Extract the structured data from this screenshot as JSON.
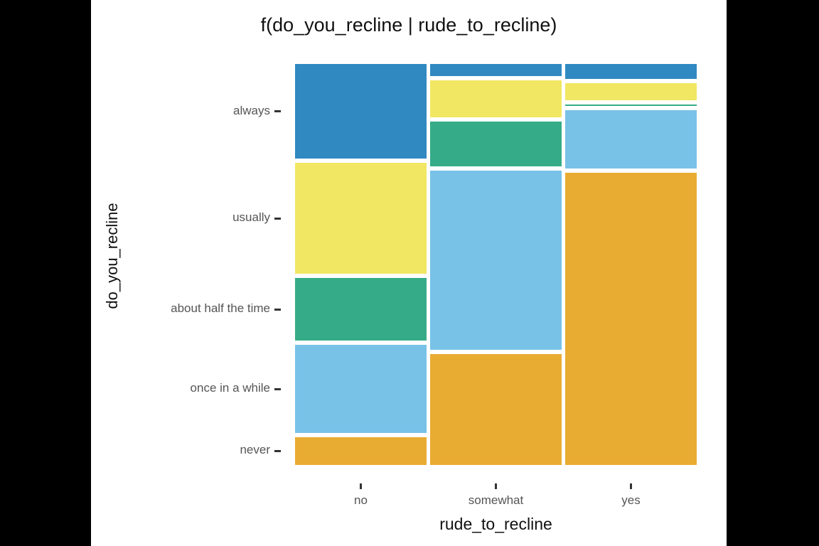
{
  "title": "f(do_you_recline | rude_to_recline)",
  "chart_data": {
    "type": "mosaic",
    "title": "f(do_you_recline | rude_to_recline)",
    "xlabel": "rude_to_recline",
    "ylabel": "do_you_recline",
    "x_categories": [
      "no",
      "somewhat",
      "yes"
    ],
    "y_categories_top_to_bottom": [
      "always",
      "usually",
      "about half the time",
      "once in a while",
      "never"
    ],
    "colors": {
      "always": "#3089c1",
      "usually": "#f1e763",
      "about half the time": "#35ac87",
      "once in a while": "#78c2e8",
      "never": "#e9ac33"
    },
    "series": [
      {
        "x": "no",
        "proportions": {
          "always": 0.247,
          "usually": 0.289,
          "about half the time": 0.163,
          "once in a while": 0.228,
          "never": 0.073
        }
      },
      {
        "x": "somewhat",
        "proportions": {
          "always": 0.032,
          "usually": 0.096,
          "about half the time": 0.117,
          "once in a while": 0.467,
          "never": 0.288
        }
      },
      {
        "x": "yes",
        "proportions": {
          "always": 0.039,
          "usually": 0.044,
          "about half the time": 0.004,
          "once in a while": 0.152,
          "never": 0.761
        }
      }
    ],
    "layout_hints": {
      "grid": "off",
      "legend": "none",
      "column_widths": "equal",
      "gap_color": "#ffffff"
    }
  }
}
